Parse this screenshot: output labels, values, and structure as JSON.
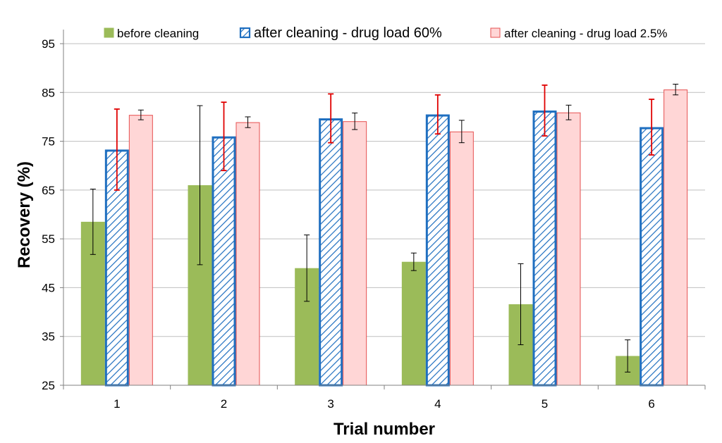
{
  "chart_data": {
    "type": "bar",
    "title": "",
    "xlabel": "Trial number",
    "ylabel": "Recovery (%)",
    "ylim": [
      25,
      95
    ],
    "yticks": [
      25,
      35,
      45,
      55,
      65,
      75,
      85,
      95
    ],
    "grid": true,
    "legend_position": "top",
    "categories": [
      "1",
      "2",
      "3",
      "4",
      "5",
      "6"
    ],
    "series": [
      {
        "name": "before cleaning",
        "values": [
          58.5,
          66.0,
          49.0,
          50.3,
          41.6,
          31.0
        ],
        "error": [
          6.7,
          16.3,
          6.8,
          1.8,
          8.3,
          3.3
        ],
        "fill": "#9bbb59",
        "stroke": "#9bbb59",
        "error_color": "#000000",
        "pattern": "solid"
      },
      {
        "name": "after cleaning - drug load 60%",
        "values": [
          73.3,
          76.0,
          79.7,
          80.5,
          81.3,
          77.9
        ],
        "error": [
          8.3,
          7.0,
          5.0,
          4.0,
          5.2,
          5.7
        ],
        "fill": "#ffffff",
        "stroke": "#1f6fc0",
        "error_color": "#e00000",
        "pattern": "hatch"
      },
      {
        "name": "after cleaning - drug load 2.5%",
        "values": [
          80.4,
          78.9,
          79.1,
          77.0,
          80.9,
          85.6
        ],
        "error": [
          1.0,
          1.1,
          1.7,
          2.3,
          1.5,
          1.1
        ],
        "fill": "#ffd6d6",
        "stroke": "#e65050",
        "error_color": "#000000",
        "pattern": "solid"
      }
    ]
  }
}
